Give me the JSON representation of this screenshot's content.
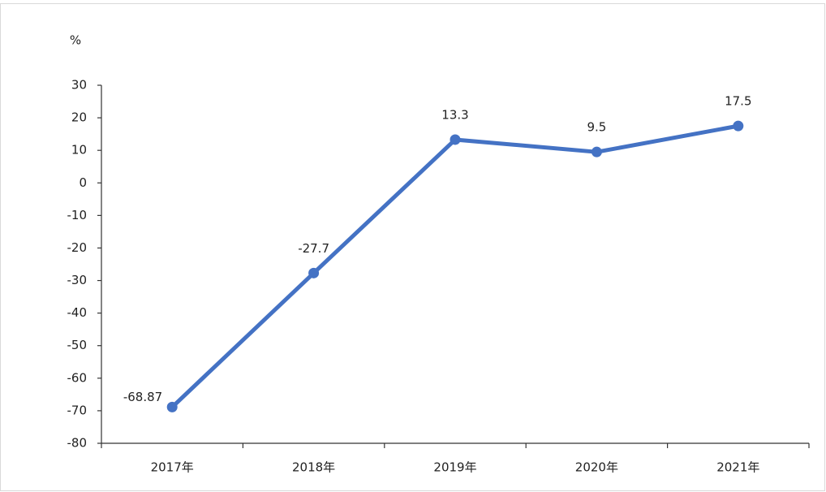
{
  "chart_data": {
    "type": "line",
    "y_label": "%",
    "categories": [
      "2017年",
      "2018年",
      "2019年",
      "2020年",
      "2021年"
    ],
    "values": [
      -68.87,
      -27.7,
      13.3,
      9.5,
      17.5
    ],
    "color": "#4472c4",
    "ylim": [
      -80,
      30
    ],
    "yticks": [
      -80,
      -70,
      -60,
      -50,
      -40,
      -30,
      -20,
      -10,
      0,
      10,
      20,
      30
    ]
  }
}
